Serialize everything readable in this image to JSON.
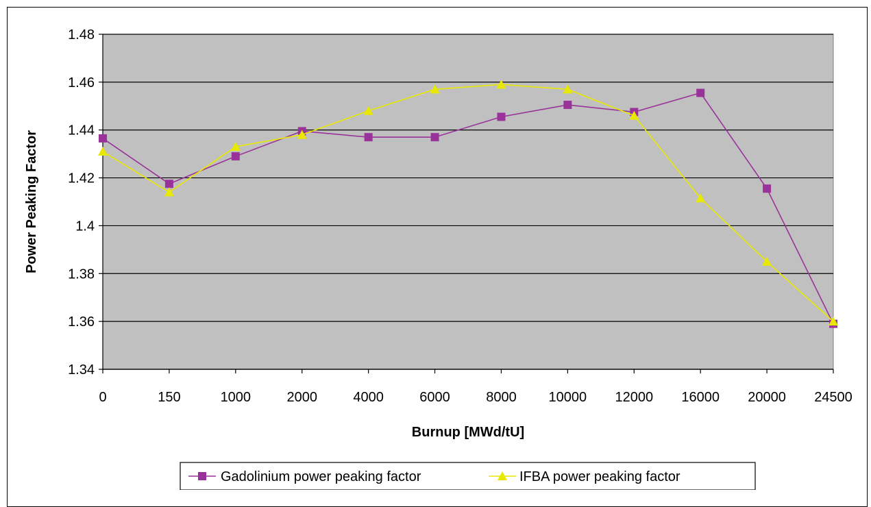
{
  "chart_data": {
    "type": "line",
    "title": "",
    "xlabel": "Burnup [MWd/tU]",
    "ylabel": "Power Peaking Factor",
    "categories": [
      "0",
      "150",
      "1000",
      "2000",
      "4000",
      "6000",
      "8000",
      "10000",
      "12000",
      "16000",
      "20000",
      "24500"
    ],
    "ylim": [
      1.34,
      1.48
    ],
    "yticks": [
      "1.34",
      "1.36",
      "1.38",
      "1.4",
      "1.42",
      "1.44",
      "1.46",
      "1.48"
    ],
    "grid": true,
    "legend_position": "bottom",
    "plot_background": "#c0c0c0",
    "series": [
      {
        "name": "Gadolinium power peaking factor",
        "color": "#993399",
        "marker": "square",
        "values": [
          1.4365,
          1.4175,
          1.429,
          1.4395,
          1.437,
          1.437,
          1.4455,
          1.4505,
          1.4475,
          1.4555,
          1.4155,
          1.359
        ]
      },
      {
        "name": "IFBA power peaking factor",
        "color": "#e8e800",
        "marker": "triangle",
        "values": [
          1.431,
          1.414,
          1.433,
          1.438,
          1.448,
          1.457,
          1.459,
          1.457,
          1.446,
          1.4115,
          1.385,
          1.36
        ]
      }
    ]
  }
}
